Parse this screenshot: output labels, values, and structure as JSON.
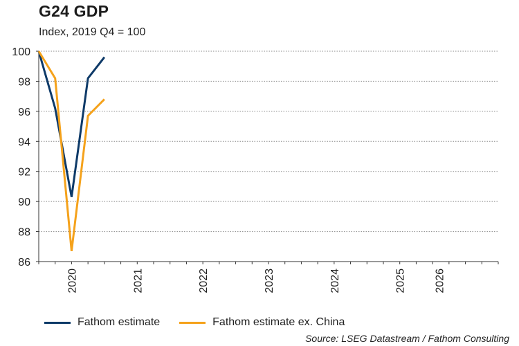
{
  "colors": {
    "series1": "#0e3a68",
    "series2": "#f5a21b",
    "grid": "#8a8a8a",
    "axis": "#333333"
  },
  "chart_data": {
    "type": "line",
    "title": "G24 GDP",
    "subtitle": "Index, 2019 Q4 = 100",
    "xlabel": "",
    "ylabel": "",
    "ylim": [
      86,
      100
    ],
    "yticks": [
      86,
      88,
      90,
      92,
      94,
      96,
      98,
      100
    ],
    "grid": "horizontal-dotted",
    "x_range": [
      2019.75,
      2026.75
    ],
    "x_tick_labels": [
      {
        "label": "2020",
        "at": 2020.25
      },
      {
        "label": "2021",
        "at": 2021.25
      },
      {
        "label": "2022",
        "at": 2022.25
      },
      {
        "label": "2023",
        "at": 2023.25
      },
      {
        "label": "2024",
        "at": 2024.25
      },
      {
        "label": "2025",
        "at": 2025.25
      },
      {
        "label": "2026",
        "at": 2025.85
      }
    ],
    "series": [
      {
        "name": "Fathom estimate",
        "color": "#0e3a68",
        "x": [
          2019.75,
          2020.0,
          2020.25,
          2020.5,
          2020.75
        ],
        "values": [
          100.0,
          96.2,
          90.3,
          98.2,
          99.6
        ]
      },
      {
        "name": "Fathom estimate ex. China",
        "color": "#f5a21b",
        "x": [
          2019.75,
          2020.0,
          2020.25,
          2020.5,
          2020.75
        ],
        "values": [
          100.0,
          98.2,
          86.7,
          95.7,
          96.8
        ]
      }
    ],
    "legend": "bottom-left",
    "source": "Source: LSEG Datastream / Fathom Consulting"
  }
}
